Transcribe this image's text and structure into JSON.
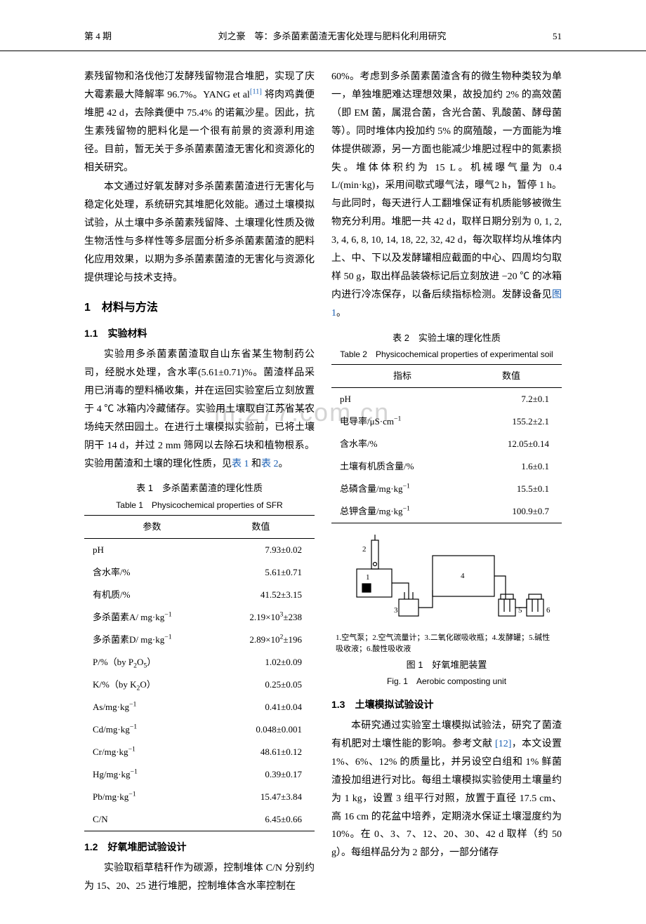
{
  "header": {
    "issue": "第 4 期",
    "running_title": "刘之豪　等：多杀菌素菌渣无害化处理与肥料化利用研究",
    "page_number": "51"
  },
  "watermark": "m.277.com.cn",
  "paragraphs": {
    "p1": "素残留物和洛伐他汀发酵残留物混合堆肥，实现了庆大霉素最大降解率 96.7%。YANG et al",
    "p1_ref": "[11]",
    "p1_tail": " 将肉鸡粪便堆肥 42 d，去除粪便中 75.4% 的诺氟沙星。因此，抗生素残留物的肥料化是一个很有前景的资源利用途径。目前，暂无关于多杀菌素菌渣无害化和资源化的相关研究。",
    "p2": "本文通过好氧发酵对多杀菌素菌渣进行无害化与稳定化处理，系统研究其堆肥化效能。通过土壤模拟试验，从土壤中多杀菌素残留降、土壤理化性质及微生物活性与多样性等多层面分析多杀菌素菌渣的肥料化应用效果，以期为多杀菌素菌渣的无害化与资源化提供理论与技术支持。",
    "s1": "1　材料与方法",
    "s1_1": "1.1　实验材料",
    "p3_a": "实验用多杀菌素菌渣取自山东省某生物制药公司，经脱水处理，含水率(5.61±0.71)%。菌渣样品采用已消毒的塑料桶收集，并在运回实验室后立刻放置于 4 ℃ 冰箱内冷藏储存。实验用土壤取自江苏省某农场纯天然田园土。在进行土壤模拟实验前，已将土壤阴干 14 d，并过 2 mm 筛网以去除石块和植物根系。实验用菌渣和土壤的理化性质，见",
    "p3_ref1": "表 1",
    "p3_mid": " 和",
    "p3_ref2": "表 2",
    "p3_end": "。",
    "s1_2": "1.2　好氧堆肥试验设计",
    "p4": "实验取稻草秸秆作为碳源，控制堆体 C/N 分别约为 15、20、25 进行堆肥，控制堆体含水率控制在",
    "p5_a": "60%。考虑到多杀菌素菌渣含有的微生物种类较为单一，单独堆肥难达理想效果，故投加约 2% 的高效菌（即 EM 菌，属混合菌，含光合菌、乳酸菌、酵母菌等）。同时堆体内投加约 5% 的腐殖酸，一方面能为堆体提供碳源，另一方面也能减少堆肥过程中的氮素损失。堆体体积约为 15 L。机械曝气量为 0.4 L/(min·kg)，采用间歇式曝气法，曝气2 h，暂停 1 h。与此同时，每天进行人工翻堆保证有机质能够被微生物充分利用。堆肥一共 42 d，取样日期分别为 0, 1, 2, 3, 4, 6, 8, 10, 14, 18, 22, 32, 42 d，每次取样均从堆体内上、中、下以及发酵罐相应截面的中心、四周均匀取样 50 g，取出样品装袋标记后立刻放进 −20 ℃ 的冰箱内进行冷冻保存，以备后续指标检测。发酵设备见",
    "p5_ref": "图 1",
    "p5_end": "。",
    "s1_3": "1.3　土壤模拟试验设计",
    "p6_a": "本研究通过实验室土壤模拟试验法，研究了菌渣有机肥对土壤性能的影响。参考文献 ",
    "p6_ref": "[12]",
    "p6_b": "，本文设置 1%、6%、12% 的质量比，并另设空白组和 1% 鲜菌渣投加组进行对比。每组土壤模拟实验使用土壤量约为 1 kg，设置 3 组平行对照，放置于直径 17.5 cm、高 16 cm 的花盆中培养，定期浇水保证土壤湿度约为 10%。在 0、3、7、12、20、30、42 d 取样（约 50 g）。每组样品分为 2 部分，一部分储存"
  },
  "table1": {
    "title_cn": "表 1　多杀菌素菌渣的理化性质",
    "title_en": "Table 1　Physicochemical properties of SFR",
    "head_param": "参数",
    "head_value": "数值",
    "rows": [
      {
        "p": "pH",
        "v": "7.93±0.02"
      },
      {
        "p": "含水率/%",
        "v": "5.61±0.71"
      },
      {
        "p": "有机质/%",
        "v": "41.52±3.15"
      },
      {
        "p": "多杀菌素A/ mg·kg<sup>−1</sup>",
        "v": "2.19×10<sup>3</sup>±238"
      },
      {
        "p": "多杀菌素D/ mg·kg<sup>−1</sup>",
        "v": "2.89×10<sup>2</sup>±196"
      },
      {
        "p": "P/%（by P<sub>2</sub>O<sub>5</sub>）",
        "v": "1.02±0.09"
      },
      {
        "p": "K/%（by K<sub>2</sub>O）",
        "v": "0.25±0.05"
      },
      {
        "p": "As/mg·kg<sup>−1</sup>",
        "v": "0.41±0.04"
      },
      {
        "p": "Cd/mg·kg<sup>−1</sup>",
        "v": "0.048±0.001"
      },
      {
        "p": "Cr/mg·kg<sup>−1</sup>",
        "v": "48.61±0.12"
      },
      {
        "p": "Hg/mg·kg<sup>−1</sup>",
        "v": "0.39±0.17"
      },
      {
        "p": "Pb/mg·kg<sup>−1</sup>",
        "v": "15.47±3.84"
      },
      {
        "p": "C/N",
        "v": "6.45±0.66"
      }
    ]
  },
  "table2": {
    "title_cn": "表 2　实验土壤的理化性质",
    "title_en": "Table 2　Physicochemical properties of experimental soil",
    "head_param": "指标",
    "head_value": "数值",
    "rows": [
      {
        "p": "pH",
        "v": "7.2±0.1"
      },
      {
        "p": "电导率/μS·cm<sup>−1</sup>",
        "v": "155.2±2.1"
      },
      {
        "p": "含水率/%",
        "v": "12.05±0.14"
      },
      {
        "p": "土壤有机质含量/%",
        "v": "1.6±0.1"
      },
      {
        "p": "总磷含量/mg·kg<sup>−1</sup>",
        "v": "15.5±0.1"
      },
      {
        "p": "总钾含量/mg·kg<sup>−1</sup>",
        "v": "100.9±0.7"
      }
    ]
  },
  "figure1": {
    "note": "1.空气泵；2.空气流量计；3.二氧化碳吸收瓶；4.发酵罐；5.碱性吸收液；6.酸性吸收液",
    "title_cn": "图 1　好氧堆肥装置",
    "title_en": "Fig. 1　Aerobic composting unit",
    "labels": {
      "l1": "1",
      "l2": "2",
      "l3": "3",
      "l4": "4",
      "l5": "5",
      "l6": "6"
    },
    "style": {
      "stroke": "#000",
      "stroke_width": 1.2,
      "fill": "none",
      "font_size": 11
    }
  },
  "colors": {
    "text": "#000000",
    "link": "#1a5fb4",
    "watermark": "#d4d4d4",
    "background": "#ffffff"
  }
}
